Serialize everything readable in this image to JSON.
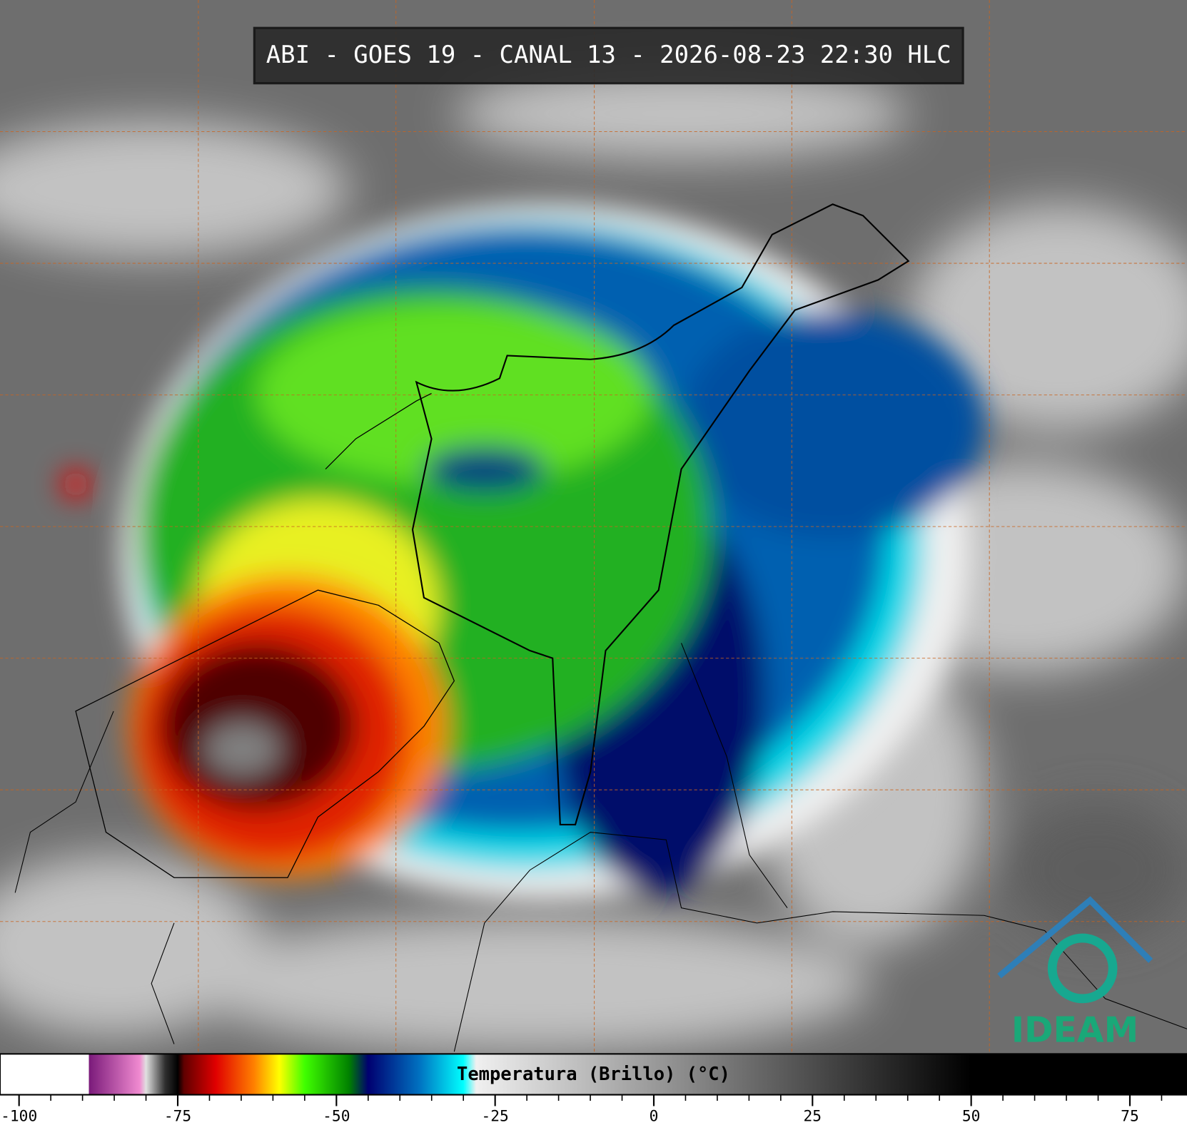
{
  "header": {
    "title": "ABI - GOES 19 - CANAL 13 - 2026-08-23 22:30 HLC"
  },
  "logo": {
    "text": "IDEAM"
  },
  "colorbar": {
    "label": "Temperatura (Brillo) (°C)",
    "lim": [
      -103,
      84
    ],
    "ticks": [
      -100,
      -75,
      -50,
      -25,
      0,
      25,
      50,
      75
    ],
    "minor_ticks": [
      -95,
      -90,
      -85,
      -80,
      -70,
      -65,
      -60,
      -55,
      -45,
      -40,
      -35,
      -30,
      -20,
      -15,
      -10,
      -5,
      5,
      10,
      15,
      20,
      30,
      35,
      40,
      45,
      55,
      60,
      65,
      70,
      80
    ],
    "stops": [
      {
        "value": -89,
        "color": "#ffffff"
      },
      {
        "value": -89,
        "color": "#7a1a7a"
      },
      {
        "value": -81,
        "color": "#f08ad0"
      },
      {
        "value": -80,
        "color": "#e0e0e0"
      },
      {
        "value": -77,
        "color": "#303030"
      },
      {
        "value": -75,
        "color": "#000000"
      },
      {
        "value": -74,
        "color": "#600000"
      },
      {
        "value": -69,
        "color": "#e00000"
      },
      {
        "value": -63,
        "color": "#ff8000"
      },
      {
        "value": -59,
        "color": "#ffff00"
      },
      {
        "value": -55,
        "color": "#40ff00"
      },
      {
        "value": -48,
        "color": "#008000"
      },
      {
        "value": -45,
        "color": "#000070"
      },
      {
        "value": -37,
        "color": "#0070c0"
      },
      {
        "value": -30,
        "color": "#00ffff"
      },
      {
        "value": -28,
        "color": "#f0f0f0"
      },
      {
        "value": 50,
        "color": "#000000"
      }
    ]
  }
}
